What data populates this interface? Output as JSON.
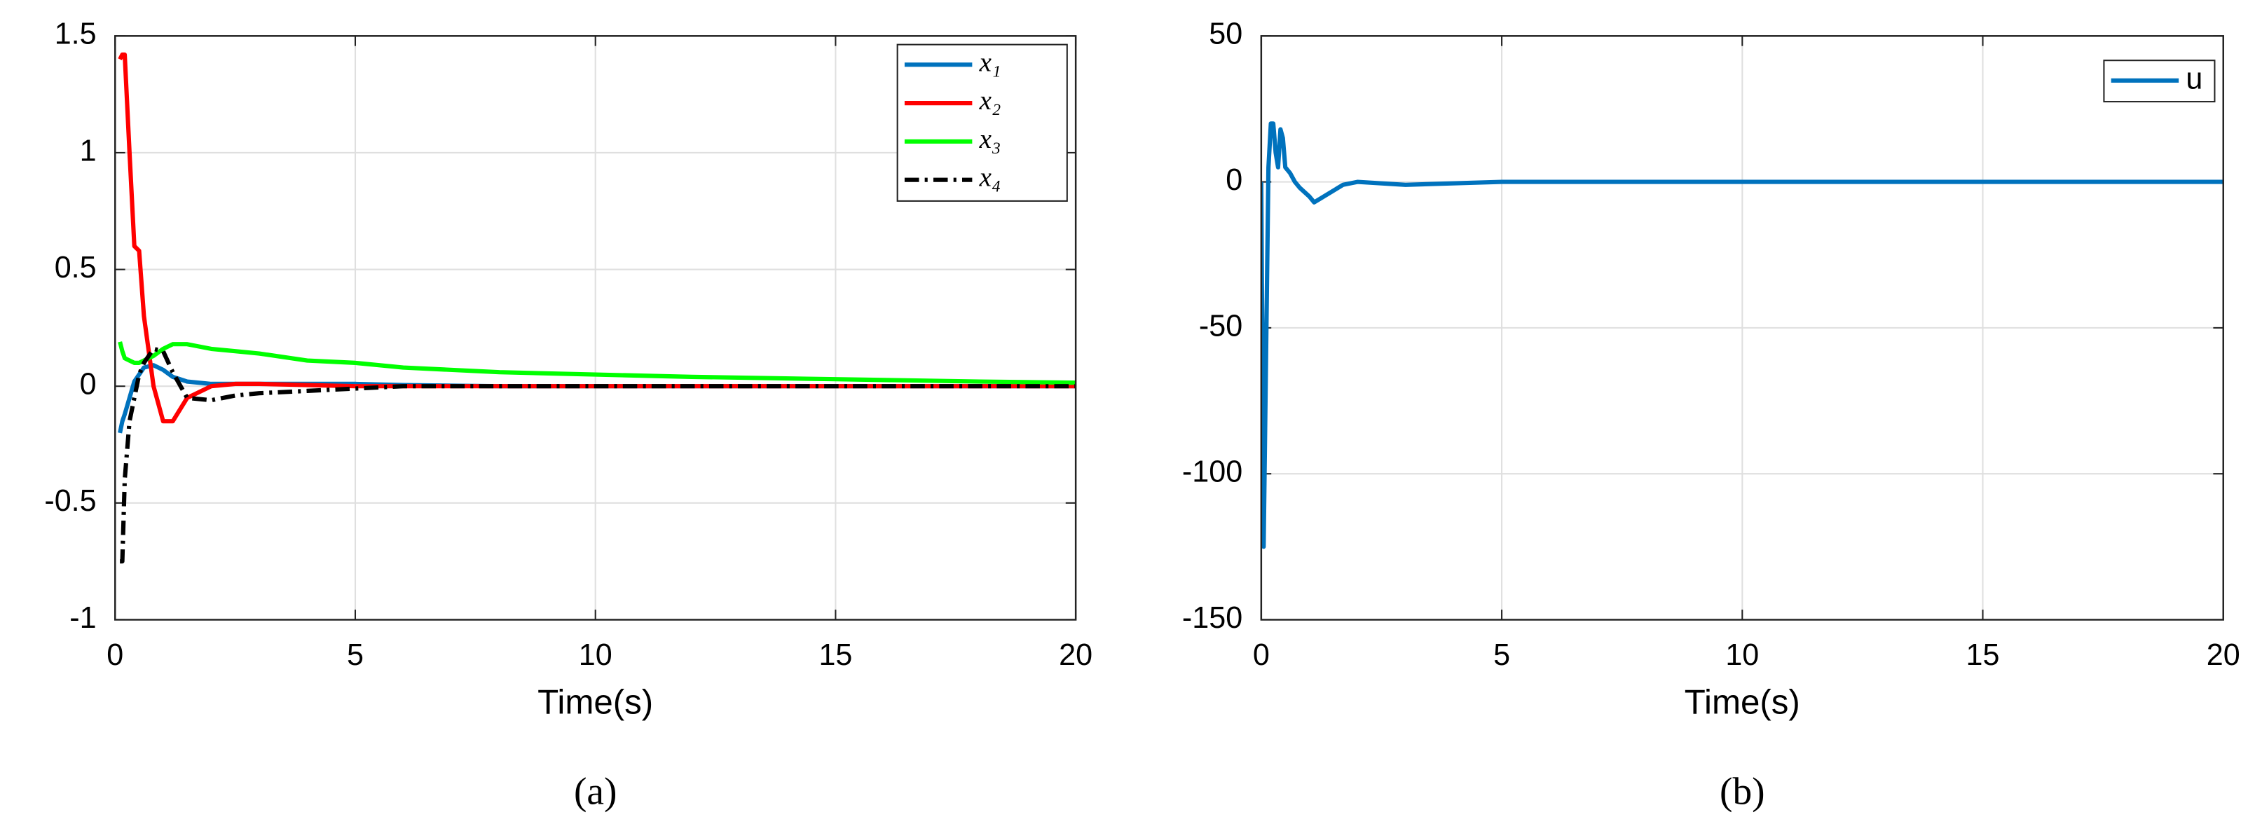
{
  "chart_data": [
    {
      "type": "line",
      "xlabel": "Time(s)",
      "caption": "(a)",
      "x": [
        0.1,
        0.15,
        0.2,
        0.3,
        0.4,
        0.5,
        0.6,
        0.8,
        1,
        1.2,
        1.5,
        2,
        2.5,
        3,
        4,
        5,
        6,
        8,
        10,
        12,
        15,
        18,
        20
      ],
      "xlim": [
        0,
        20
      ],
      "xticks": [
        0,
        5,
        10,
        15,
        20
      ],
      "ylim": [
        -1,
        1.5
      ],
      "yticks": [
        -1,
        -0.5,
        0,
        0.5,
        1,
        1.5
      ],
      "grid": true,
      "legend": "upper right",
      "series": [
        {
          "name": "x₁",
          "color": "#0072bd",
          "style": "solid",
          "values": [
            -0.2,
            -0.15,
            -0.12,
            -0.05,
            0.02,
            0.05,
            0.08,
            0.09,
            0.07,
            0.04,
            0.02,
            0.01,
            0.01,
            0.01,
            0.01,
            0.01,
            0.005,
            0,
            0,
            0,
            0,
            0,
            0
          ]
        },
        {
          "name": "x₂",
          "color": "#ff0000",
          "style": "solid",
          "values": [
            1.4,
            1.42,
            1.42,
            1.0,
            0.6,
            0.58,
            0.3,
            0.0,
            -0.15,
            -0.15,
            -0.05,
            0.0,
            0.01,
            0.01,
            0.005,
            0,
            0,
            0,
            0,
            0,
            0,
            0,
            0
          ]
        },
        {
          "name": "x₃",
          "color": "#00ff00",
          "style": "solid",
          "values": [
            0.19,
            0.15,
            0.12,
            0.11,
            0.1,
            0.1,
            0.11,
            0.13,
            0.16,
            0.18,
            0.18,
            0.16,
            0.15,
            0.14,
            0.11,
            0.1,
            0.08,
            0.06,
            0.05,
            0.04,
            0.03,
            0.02,
            0.015
          ]
        },
        {
          "name": "x₄",
          "color": "#000000",
          "style": "dashdot",
          "values": [
            -0.75,
            -0.75,
            -0.4,
            -0.15,
            -0.05,
            0.05,
            0.1,
            0.16,
            0.15,
            0.06,
            -0.05,
            -0.06,
            -0.04,
            -0.03,
            -0.02,
            -0.01,
            0,
            0,
            0,
            0,
            0,
            0,
            0
          ]
        }
      ]
    },
    {
      "type": "line",
      "xlabel": "Time(s)",
      "caption": "(b)",
      "x": [
        0,
        0.05,
        0.1,
        0.15,
        0.2,
        0.25,
        0.3,
        0.35,
        0.4,
        0.45,
        0.5,
        0.6,
        0.7,
        0.8,
        1,
        1.1,
        1.2,
        1.5,
        1.7,
        2,
        3,
        5,
        10,
        15,
        20
      ],
      "xlim": [
        0,
        20
      ],
      "xticks": [
        0,
        5,
        10,
        15,
        20
      ],
      "ylim": [
        -150,
        50
      ],
      "yticks": [
        -150,
        -100,
        -50,
        0,
        50
      ],
      "grid": true,
      "legend": "upper right",
      "series": [
        {
          "name": "u",
          "color": "#0072bd",
          "style": "solid",
          "values": [
            0,
            -125,
            -60,
            5,
            20,
            20,
            10,
            5,
            18,
            15,
            5,
            3,
            0,
            -2,
            -5,
            -7,
            -6,
            -3,
            -1,
            0,
            -1,
            0,
            0,
            0,
            0
          ]
        }
      ]
    }
  ]
}
